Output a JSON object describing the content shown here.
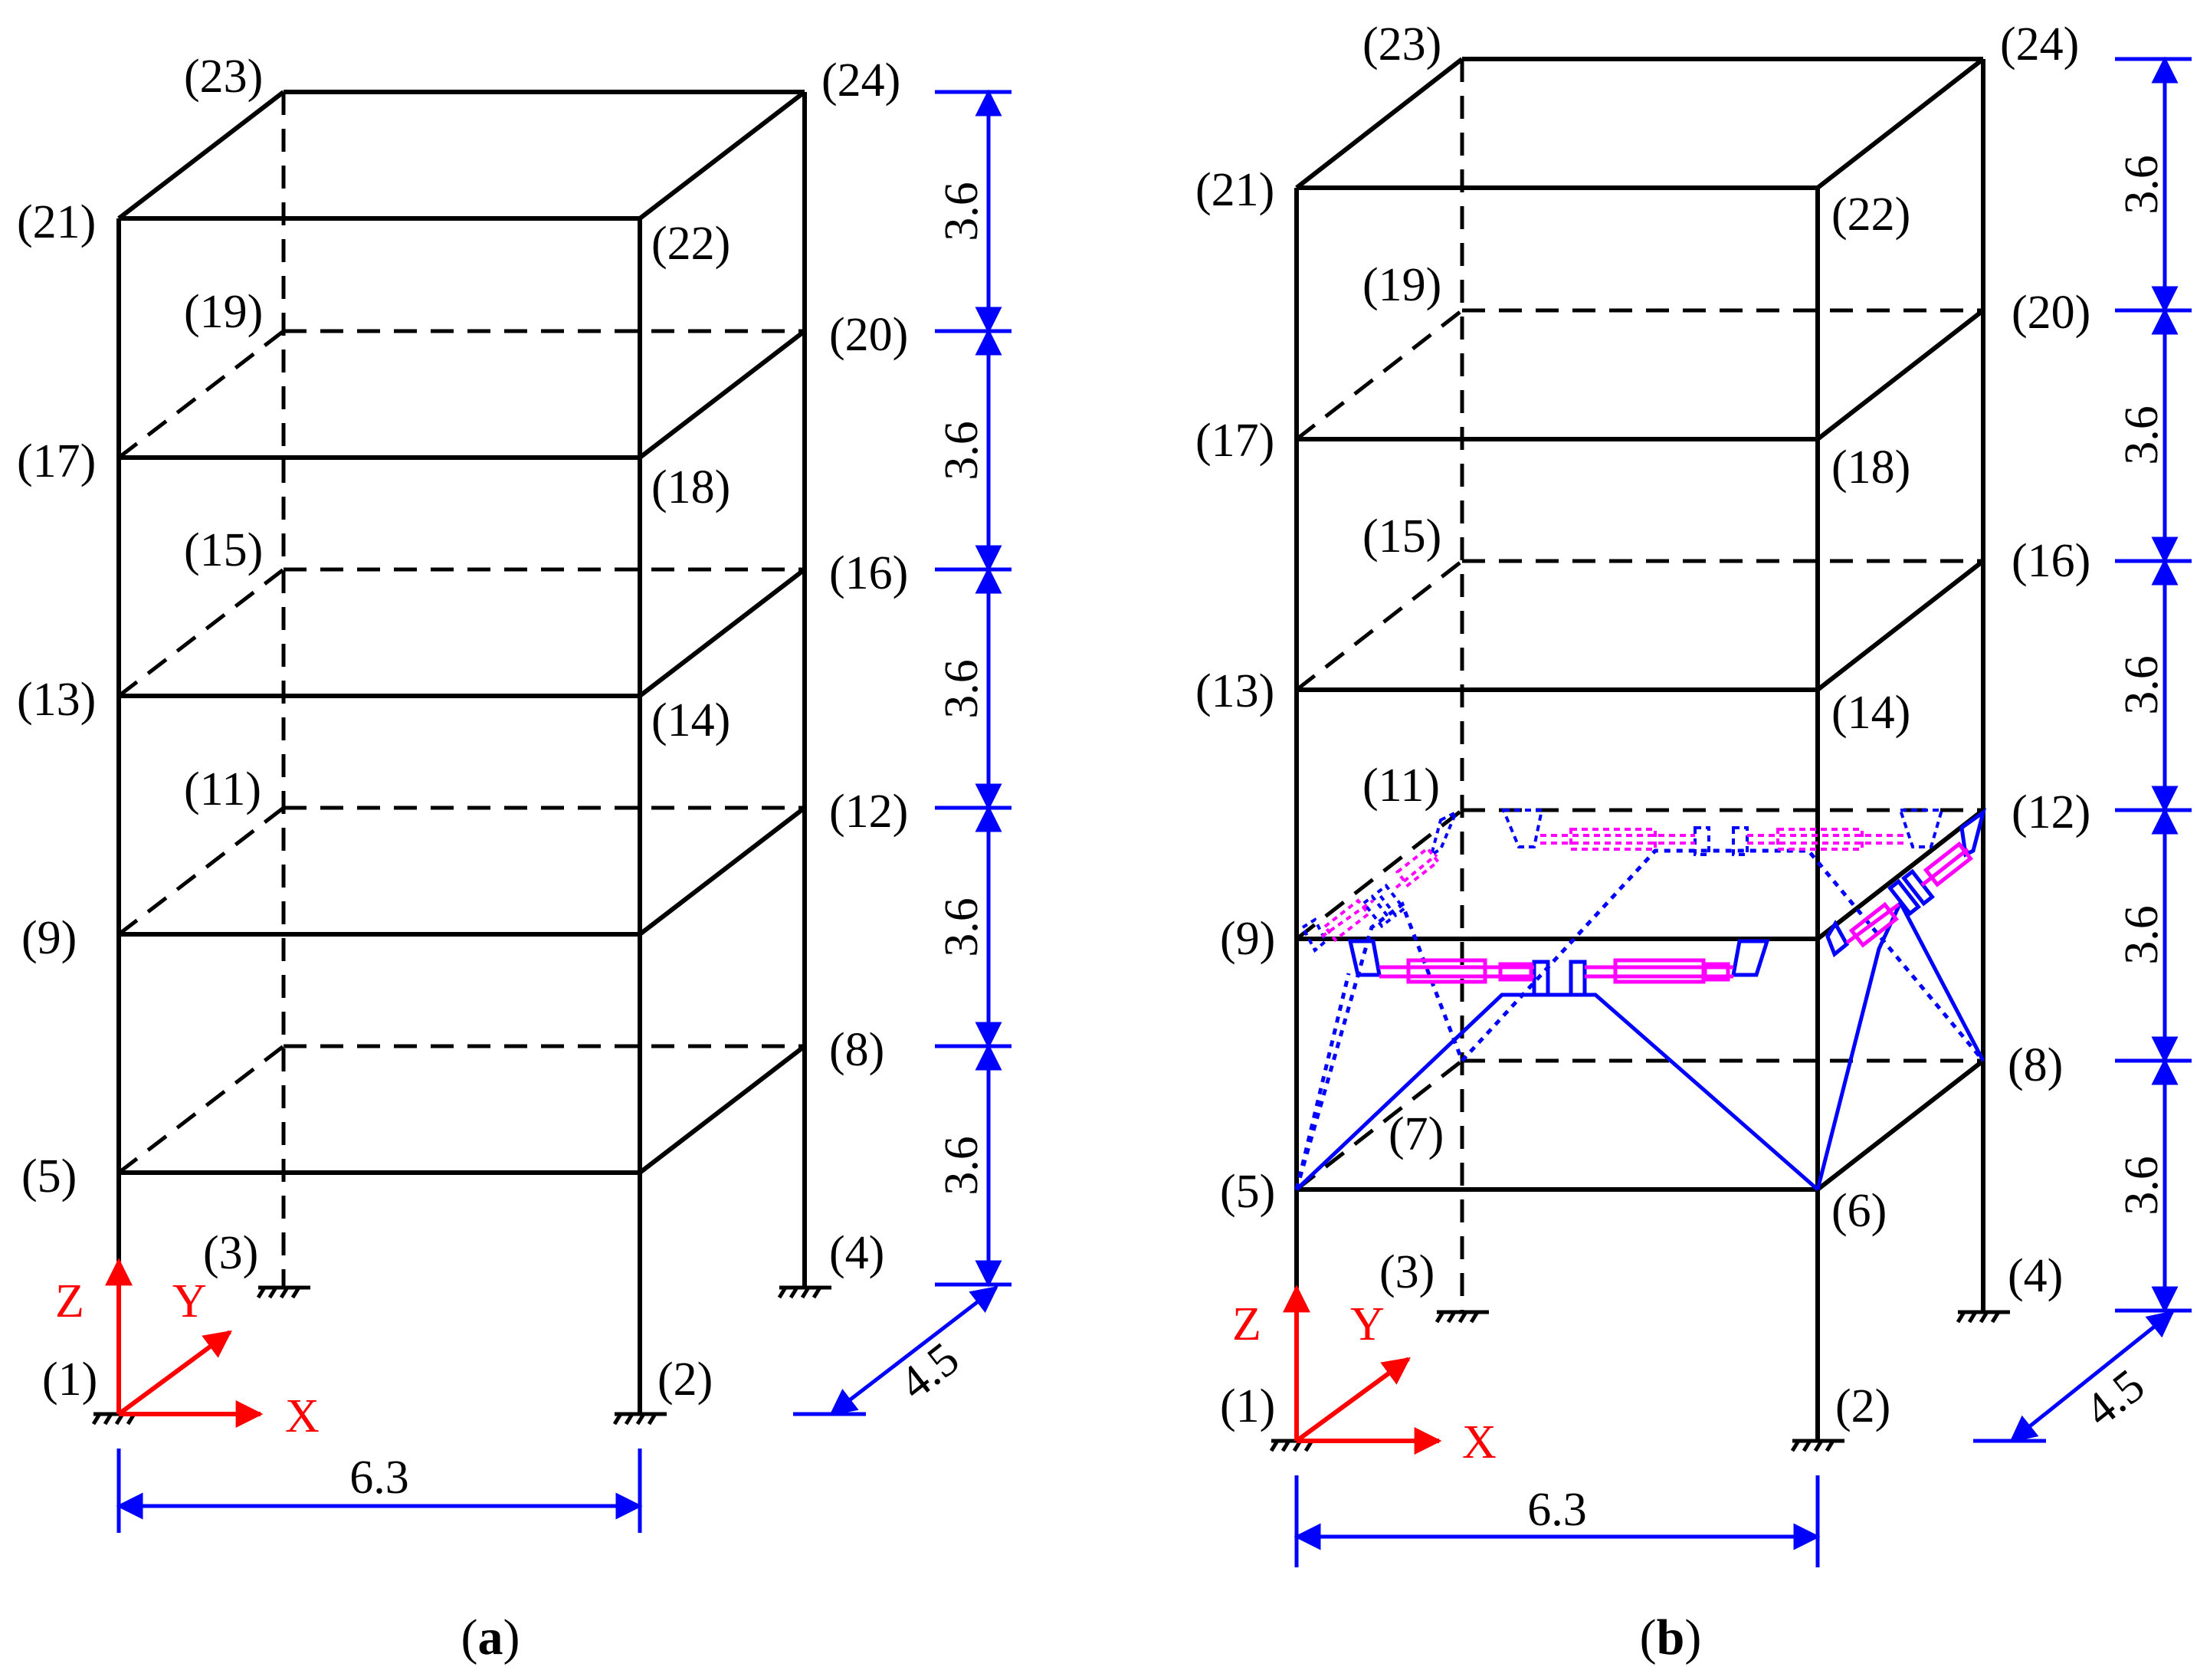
{
  "panel_a": {
    "nodes": [
      "(1)",
      "(2)",
      "(3)",
      "(4)",
      "(5)",
      "(8)",
      "(9)",
      "(11)",
      "(12)",
      "(13)",
      "(14)",
      "(15)",
      "(16)",
      "(17)",
      "(18)",
      "(19)",
      "(20)",
      "(21)",
      "(22)",
      "(23)",
      "(24)"
    ],
    "story_dims": [
      "3.6",
      "3.6",
      "3.6",
      "3.6",
      "3.6"
    ],
    "span_x": "6.3",
    "span_y": "4.5",
    "axes": {
      "x": "X",
      "y": "Y",
      "z": "Z"
    },
    "caption": {
      "open": "(",
      "letter": "a",
      "close": ")"
    }
  },
  "panel_b": {
    "nodes": [
      "(1)",
      "(2)",
      "(3)",
      "(4)",
      "(5)",
      "(6)",
      "(7)",
      "(8)",
      "(9)",
      "(11)",
      "(12)",
      "(13)",
      "(14)",
      "(15)",
      "(16)",
      "(17)",
      "(18)",
      "(19)",
      "(20)",
      "(21)",
      "(22)",
      "(23)",
      "(24)"
    ],
    "story_dims": [
      "3.6",
      "3.6",
      "3.6",
      "3.6",
      "3.6"
    ],
    "span_x": "6.3",
    "span_y": "4.5",
    "axes": {
      "x": "X",
      "y": "Y",
      "z": "Z"
    },
    "caption": {
      "open": "(",
      "letter": "b",
      "close": ")"
    }
  },
  "colors": {
    "frame": "#000000",
    "dimension": "#0000ff",
    "axis": "#ff0000",
    "damper": "#ff00ff",
    "brace": "#0000ff"
  }
}
